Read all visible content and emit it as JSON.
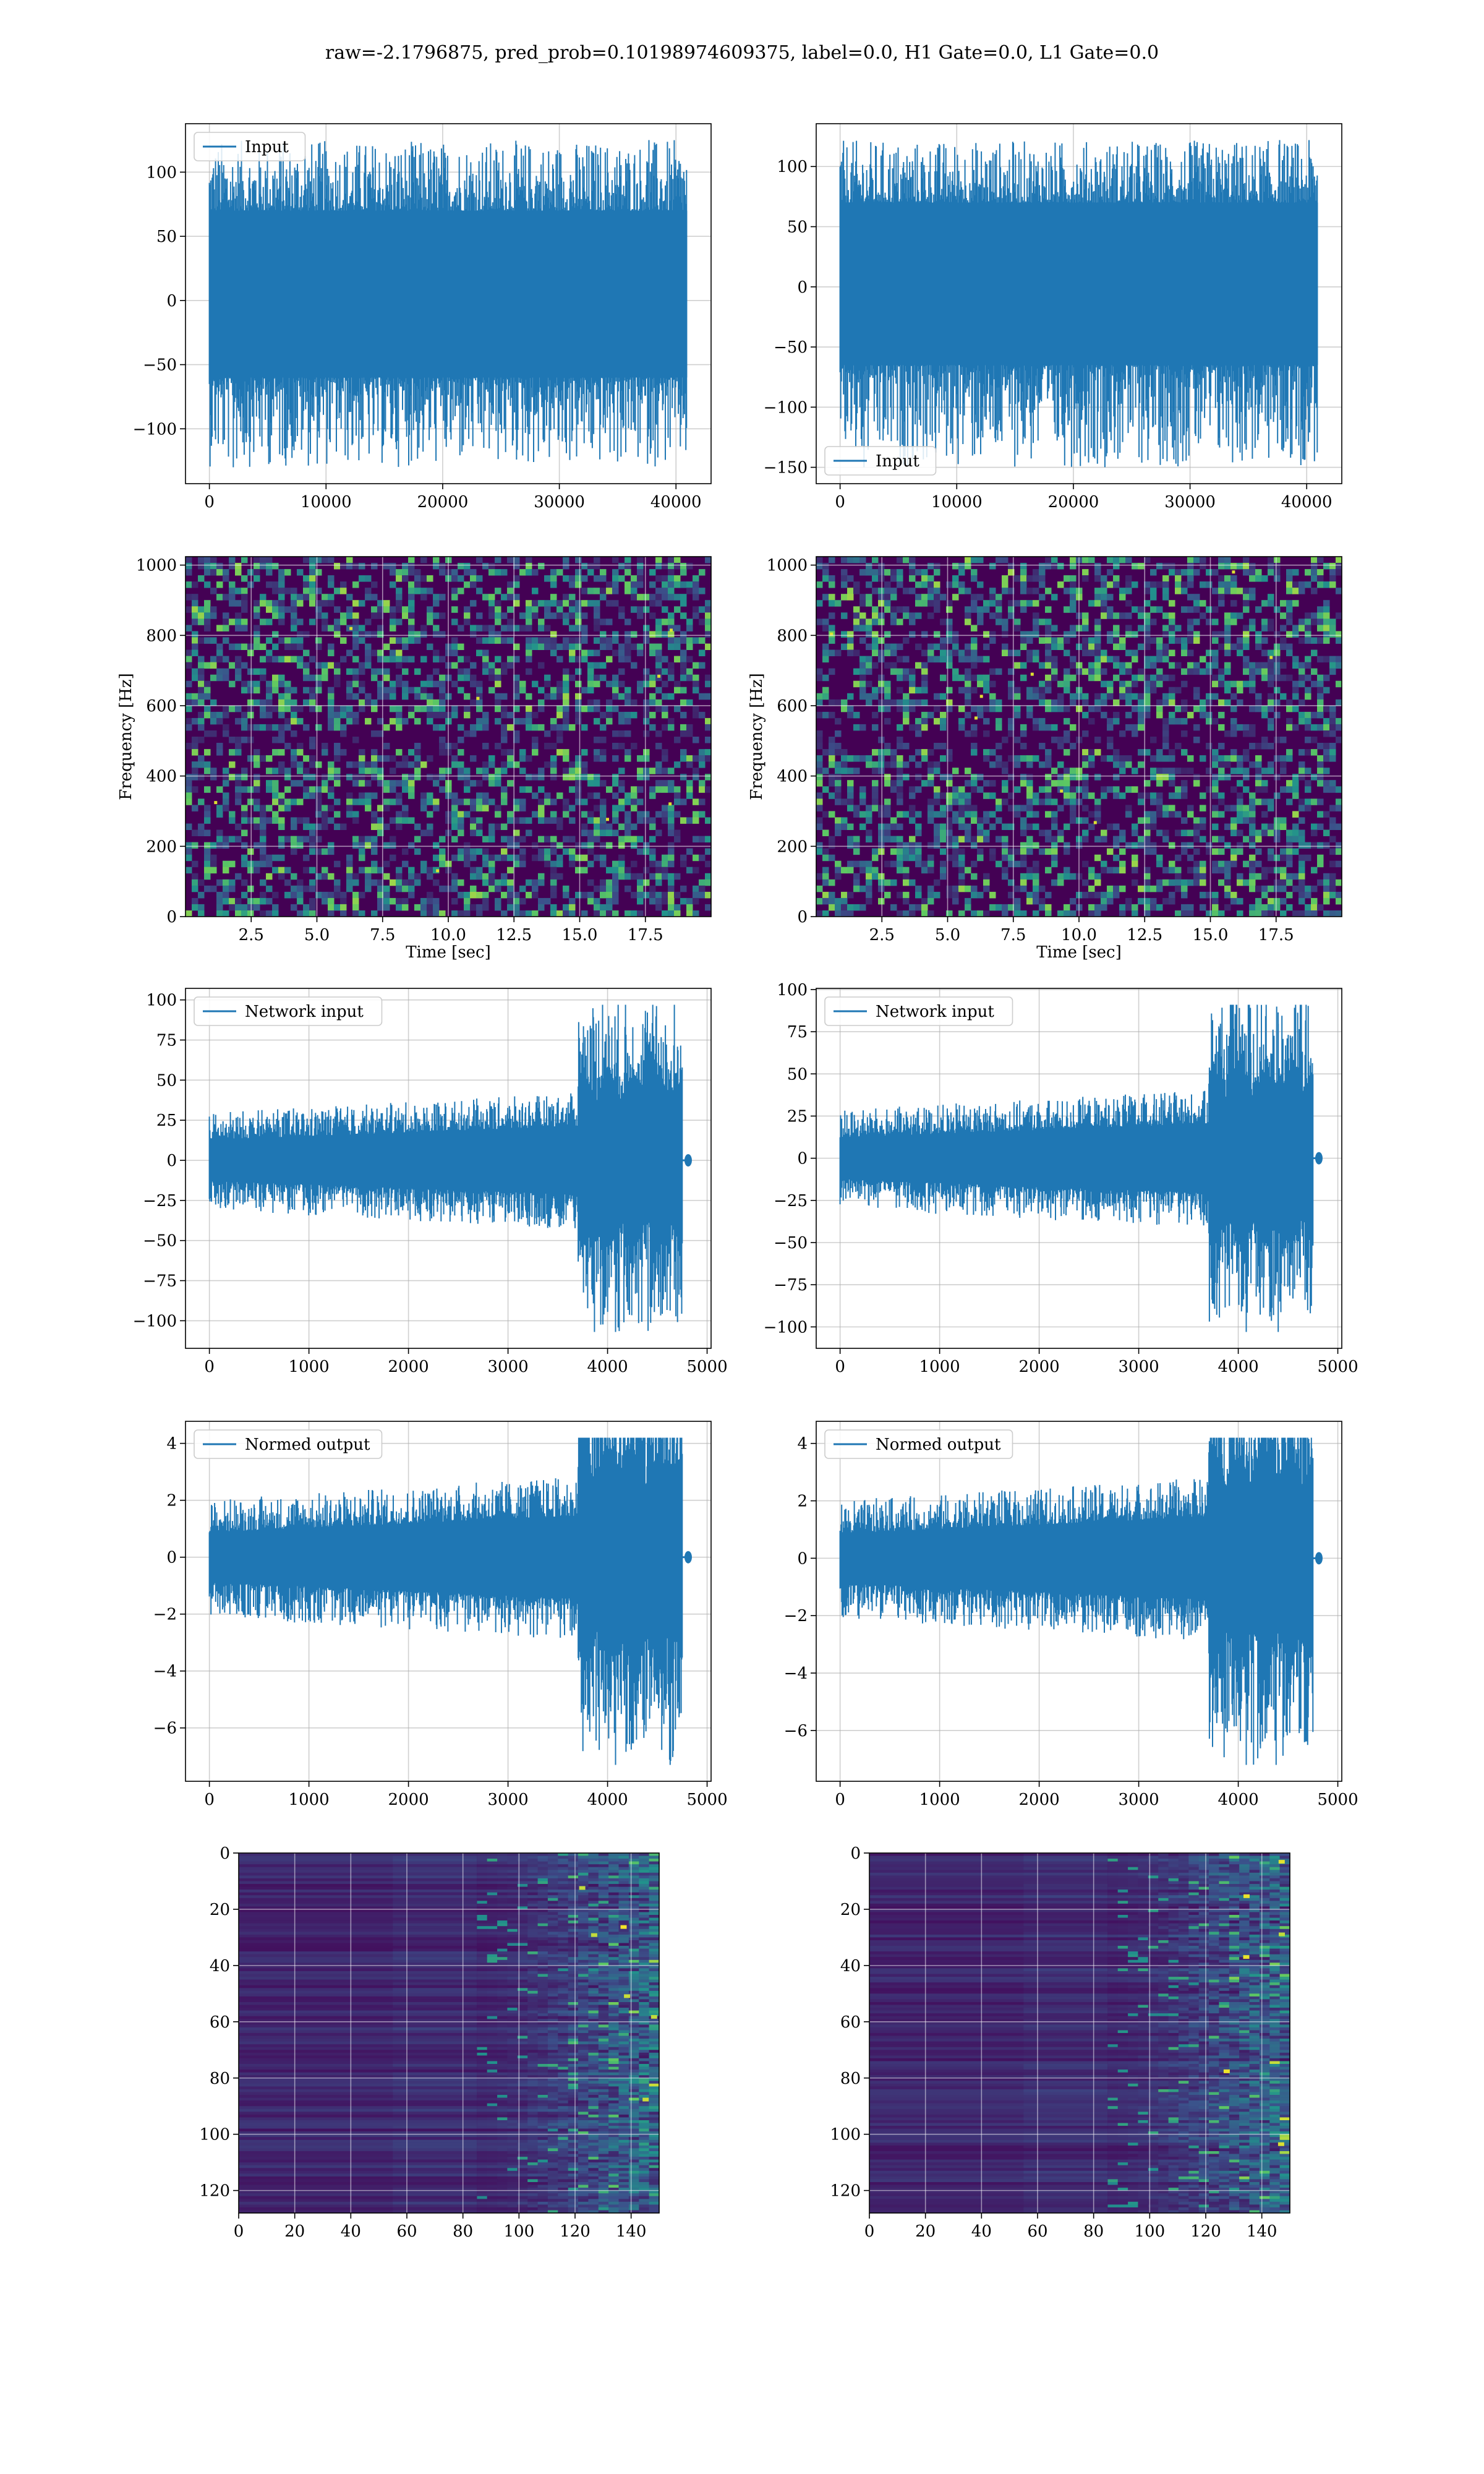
{
  "title": "raw=-2.1796875, pred_prob=0.10198974609375, label=0.0, H1 Gate=0.0, L1 Gate=0.0",
  "colors": {
    "line": "#1f77b4",
    "grid": "#b0b0b0",
    "viridis_dark": "#440154",
    "viridis_mid": "#21918c",
    "viridis_light": "#fde725"
  },
  "chart_data": [
    {
      "id": "h1-input",
      "type": "line",
      "series": [
        {
          "name": "Input"
        }
      ],
      "legend": "top-left",
      "x_range": [
        0,
        40960
      ],
      "y_range": [
        -130,
        125
      ],
      "envelope_typical": [
        -60,
        70
      ],
      "xticks": [
        "0",
        "10000",
        "20000",
        "30000",
        "40000"
      ],
      "yticks": [
        "100",
        "50",
        "0",
        "−50",
        "−100"
      ],
      "grid": true
    },
    {
      "id": "l1-input",
      "type": "line",
      "series": [
        {
          "name": "Input"
        }
      ],
      "legend": "bottom-left",
      "x_range": [
        0,
        40960
      ],
      "y_range": [
        -150,
        122
      ],
      "envelope_typical": [
        -65,
        70
      ],
      "xticks": [
        "0",
        "10000",
        "20000",
        "30000",
        "40000"
      ],
      "yticks": [
        "100",
        "50",
        "0",
        "−50",
        "−100",
        "−150"
      ],
      "grid": true
    },
    {
      "id": "h1-spectrogram",
      "type": "heatmap",
      "colormap": "viridis",
      "xlabel": "Time [sec]",
      "ylabel": "Frequency [Hz]",
      "x_range": [
        0,
        20
      ],
      "y_range": [
        0,
        1024
      ],
      "xticks": [
        "2.5",
        "5.0",
        "7.5",
        "10.0",
        "12.5",
        "15.0",
        "17.5"
      ],
      "yticks": [
        "1000",
        "800",
        "600",
        "400",
        "200",
        "0"
      ],
      "grid": true
    },
    {
      "id": "l1-spectrogram",
      "type": "heatmap",
      "colormap": "viridis",
      "xlabel": "Time [sec]",
      "ylabel": "Frequency [Hz]",
      "x_range": [
        0,
        20
      ],
      "y_range": [
        0,
        1024
      ],
      "xticks": [
        "2.5",
        "5.0",
        "7.5",
        "10.0",
        "12.5",
        "15.0",
        "17.5"
      ],
      "yticks": [
        "1000",
        "800",
        "600",
        "400",
        "200",
        "0"
      ],
      "grid": true
    },
    {
      "id": "h1-network-input",
      "type": "line",
      "series": [
        {
          "name": "Network input"
        }
      ],
      "legend": "top-left",
      "x_range": [
        0,
        4800
      ],
      "y_range": [
        -107,
        97
      ],
      "ramp_start": 3700,
      "signal_end": 4750,
      "xticks": [
        "0",
        "1000",
        "2000",
        "3000",
        "4000",
        "5000"
      ],
      "yticks": [
        "100",
        "75",
        "50",
        "25",
        "0",
        "−25",
        "−50",
        "−75",
        "−100"
      ],
      "grid": true
    },
    {
      "id": "l1-network-input",
      "type": "line",
      "series": [
        {
          "name": "Network input"
        }
      ],
      "legend": "top-left",
      "x_range": [
        0,
        4800
      ],
      "y_range": [
        -103,
        91
      ],
      "ramp_start": 3700,
      "signal_end": 4750,
      "xticks": [
        "0",
        "1000",
        "2000",
        "3000",
        "4000",
        "5000"
      ],
      "yticks": [
        "100",
        "75",
        "50",
        "25",
        "0",
        "−25",
        "−50",
        "−75",
        "−100"
      ],
      "grid": true
    },
    {
      "id": "h1-normed-output",
      "type": "line",
      "series": [
        {
          "name": "Normed output"
        }
      ],
      "legend": "top-left",
      "x_range": [
        0,
        4800
      ],
      "y_range": [
        -7.3,
        4.2
      ],
      "ramp_start": 3700,
      "signal_end": 4750,
      "xticks": [
        "0",
        "1000",
        "2000",
        "3000",
        "4000",
        "5000"
      ],
      "yticks": [
        "4",
        "2",
        "0",
        "−2",
        "−4",
        "−6"
      ],
      "grid": true
    },
    {
      "id": "l1-normed-output",
      "type": "line",
      "series": [
        {
          "name": "Normed output"
        }
      ],
      "legend": "top-left",
      "x_range": [
        0,
        4800
      ],
      "y_range": [
        -7.2,
        4.2
      ],
      "ramp_start": 3700,
      "signal_end": 4750,
      "xticks": [
        "0",
        "1000",
        "2000",
        "3000",
        "4000",
        "5000"
      ],
      "yticks": [
        "4",
        "2",
        "0",
        "−2",
        "−4",
        "−6"
      ],
      "grid": true
    },
    {
      "id": "h1-features",
      "type": "heatmap",
      "colormap": "viridis",
      "x_range": [
        0,
        150
      ],
      "y_range": [
        0,
        128
      ],
      "xticks": [
        "0",
        "20",
        "40",
        "60",
        "80",
        "100",
        "120",
        "140"
      ],
      "yticks": [
        "0",
        "20",
        "40",
        "60",
        "80",
        "100",
        "120"
      ],
      "grid": true
    },
    {
      "id": "l1-features",
      "type": "heatmap",
      "colormap": "viridis",
      "x_range": [
        0,
        150
      ],
      "y_range": [
        0,
        128
      ],
      "xticks": [
        "0",
        "20",
        "40",
        "60",
        "80",
        "100",
        "120",
        "140"
      ],
      "yticks": [
        "0",
        "20",
        "40",
        "60",
        "80",
        "100",
        "120"
      ],
      "grid": true
    }
  ]
}
